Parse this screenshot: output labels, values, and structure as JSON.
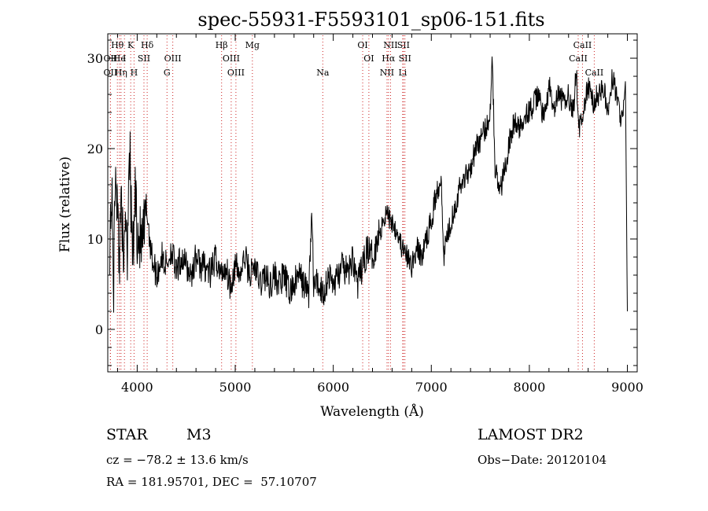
{
  "chart_data": {
    "type": "line",
    "title": "spec-55931-F5593101_sp06-151.fits",
    "xlabel": "Wavelength (Å)",
    "ylabel": "Flux (relative)",
    "xlim": [
      3700,
      9100
    ],
    "ylim": [
      -4.7,
      32.7
    ],
    "x_ticks": [
      4000,
      5000,
      6000,
      7000,
      8000,
      9000
    ],
    "y_ticks": [
      0,
      10,
      20,
      30
    ],
    "minor_x_step": 200,
    "minor_y_step": 2,
    "grid": false,
    "legend": "none",
    "spectrum": {
      "name": "",
      "x": [
        3720,
        3740,
        3760,
        3780,
        3800,
        3820,
        3840,
        3860,
        3880,
        3900,
        3920,
        3940,
        3960,
        3980,
        4000,
        4050,
        4100,
        4150,
        4200,
        4250,
        4300,
        4350,
        4400,
        4450,
        4500,
        4550,
        4600,
        4650,
        4700,
        4750,
        4800,
        4850,
        4900,
        4950,
        5000,
        5050,
        5100,
        5150,
        5200,
        5250,
        5300,
        5350,
        5400,
        5450,
        5500,
        5550,
        5600,
        5650,
        5700,
        5750,
        5780,
        5800,
        5850,
        5900,
        5950,
        6000,
        6050,
        6100,
        6150,
        6200,
        6250,
        6300,
        6350,
        6400,
        6450,
        6500,
        6550,
        6580,
        6600,
        6650,
        6700,
        6750,
        6800,
        6850,
        6900,
        6950,
        7000,
        7050,
        7100,
        7130,
        7150,
        7200,
        7250,
        7300,
        7350,
        7400,
        7450,
        7500,
        7550,
        7600,
        7620,
        7650,
        7700,
        7750,
        7800,
        7850,
        7900,
        7950,
        8000,
        8050,
        8100,
        8150,
        8200,
        8250,
        8300,
        8350,
        8400,
        8450,
        8480,
        8500,
        8550,
        8600,
        8650,
        8700,
        8750,
        8800,
        8850,
        8900,
        8950,
        8980,
        9000
      ],
      "y": [
        10,
        15,
        5,
        20,
        12,
        8,
        18,
        4,
        14,
        9,
        22,
        12,
        8,
        16,
        11,
        9,
        13,
        8,
        6,
        8,
        7,
        9,
        6,
        8,
        7,
        6,
        8,
        7,
        7,
        6,
        8,
        6,
        7,
        5,
        7,
        6,
        8,
        6,
        7,
        5,
        6,
        5,
        6,
        5,
        6,
        4,
        5,
        6,
        5,
        4,
        13,
        5,
        5,
        4,
        6,
        5,
        6,
        7,
        6,
        8,
        5,
        7,
        9,
        8,
        10,
        12,
        13,
        12,
        12,
        11,
        9,
        8,
        7,
        9,
        8,
        10,
        12,
        15,
        17,
        8,
        10,
        12,
        14,
        16,
        17,
        18,
        20,
        21,
        22,
        24,
        31,
        18,
        15,
        18,
        21,
        23,
        22,
        24,
        24,
        25,
        26,
        23,
        27,
        24,
        26,
        25,
        26,
        24,
        29,
        22,
        24,
        27,
        25,
        26,
        27,
        24,
        28,
        25,
        23,
        27,
        2
      ]
    },
    "spectral_lines": [
      {
        "label": "Hθ",
        "x": 3798,
        "row": 0
      },
      {
        "label": "K",
        "x": 3934,
        "row": 0
      },
      {
        "label": "Hδ",
        "x": 4102,
        "row": 0
      },
      {
        "label": "Hβ",
        "x": 4861,
        "row": 0
      },
      {
        "label": "Mg",
        "x": 5175,
        "row": 0
      },
      {
        "label": "OI",
        "x": 6300,
        "row": 0
      },
      {
        "label": "NII",
        "x": 6584,
        "row": 0
      },
      {
        "label": "SII",
        "x": 6716,
        "row": 0
      },
      {
        "label": "CaII",
        "x": 8542,
        "row": 0
      },
      {
        "label": "OII",
        "x": 3727,
        "row": 1
      },
      {
        "label": "He",
        "x": 3819,
        "row": 1
      },
      {
        "label": "I",
        "x": 3870,
        "row": 1
      },
      {
        "label": "SII",
        "x": 4069,
        "row": 1
      },
      {
        "label": "OIII",
        "x": 4363,
        "row": 1
      },
      {
        "label": "OIII",
        "x": 4959,
        "row": 1
      },
      {
        "label": "OI",
        "x": 6363,
        "row": 1
      },
      {
        "label": "Hα",
        "x": 6563,
        "row": 1
      },
      {
        "label": "SII",
        "x": 6731,
        "row": 1
      },
      {
        "label": "CaII",
        "x": 8498,
        "row": 1
      },
      {
        "label": "OII",
        "x": 3727,
        "row": 2
      },
      {
        "label": "Hη",
        "x": 3835,
        "row": 2
      },
      {
        "label": "H",
        "x": 3968,
        "row": 2
      },
      {
        "label": "G",
        "x": 4304,
        "row": 2
      },
      {
        "label": "OIII",
        "x": 5007,
        "row": 2
      },
      {
        "label": "Na",
        "x": 5893,
        "row": 2
      },
      {
        "label": "NII",
        "x": 6548,
        "row": 2
      },
      {
        "label": "Li",
        "x": 6708,
        "row": 2
      },
      {
        "label": "CaII",
        "x": 8662,
        "row": 2
      }
    ]
  },
  "footer": {
    "object_type": "STAR",
    "subclass": "M3",
    "survey": "LAMOST DR2",
    "cz": "cz = −78.2 ± 13.6 km/s",
    "obs_date": "Obs−Date: 20120104",
    "coords": "RA = 181.95701, DEC =  57.10707"
  },
  "colors": {
    "line_marker": "#cc2222",
    "axes": "#000000",
    "spectrum": "#000000"
  }
}
